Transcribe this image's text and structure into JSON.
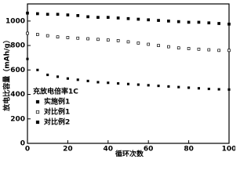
{
  "chart_data": {
    "type": "scatter",
    "x_label": "循环次数",
    "y_label": "放电比容量（mAh/g）",
    "legend_title": "充放电倍率1C",
    "x": [
      0,
      5,
      10,
      15,
      20,
      25,
      30,
      35,
      40,
      45,
      50,
      55,
      60,
      65,
      70,
      75,
      80,
      85,
      90,
      95,
      100
    ],
    "series": [
      {
        "name": "实施例1",
        "color": "#000000",
        "filled": true,
        "values": [
          1065,
          1060,
          1055,
          1055,
          1050,
          1045,
          1035,
          1030,
          1030,
          1025,
          1020,
          1015,
          1010,
          1005,
          1000,
          995,
          990,
          990,
          985,
          980,
          975
        ]
      },
      {
        "name": "对比例1",
        "color": "#000000",
        "filled": false,
        "values": [
          900,
          890,
          880,
          870,
          865,
          860,
          855,
          850,
          845,
          840,
          830,
          820,
          810,
          800,
          790,
          780,
          775,
          770,
          765,
          760,
          760
        ]
      },
      {
        "name": "对比例2",
        "color": "#000000",
        "filled": true,
        "values": [
          690,
          600,
          560,
          545,
          530,
          520,
          510,
          500,
          495,
          490,
          485,
          480,
          475,
          470,
          465,
          460,
          455,
          450,
          445,
          442,
          440
        ]
      }
    ],
    "xlim": [
      0,
      100
    ],
    "xticks": [
      0,
      20,
      40,
      60,
      80,
      100
    ],
    "ylim": [
      0,
      1140
    ],
    "yticks": [
      0,
      200,
      400,
      600,
      800,
      1000
    ]
  }
}
